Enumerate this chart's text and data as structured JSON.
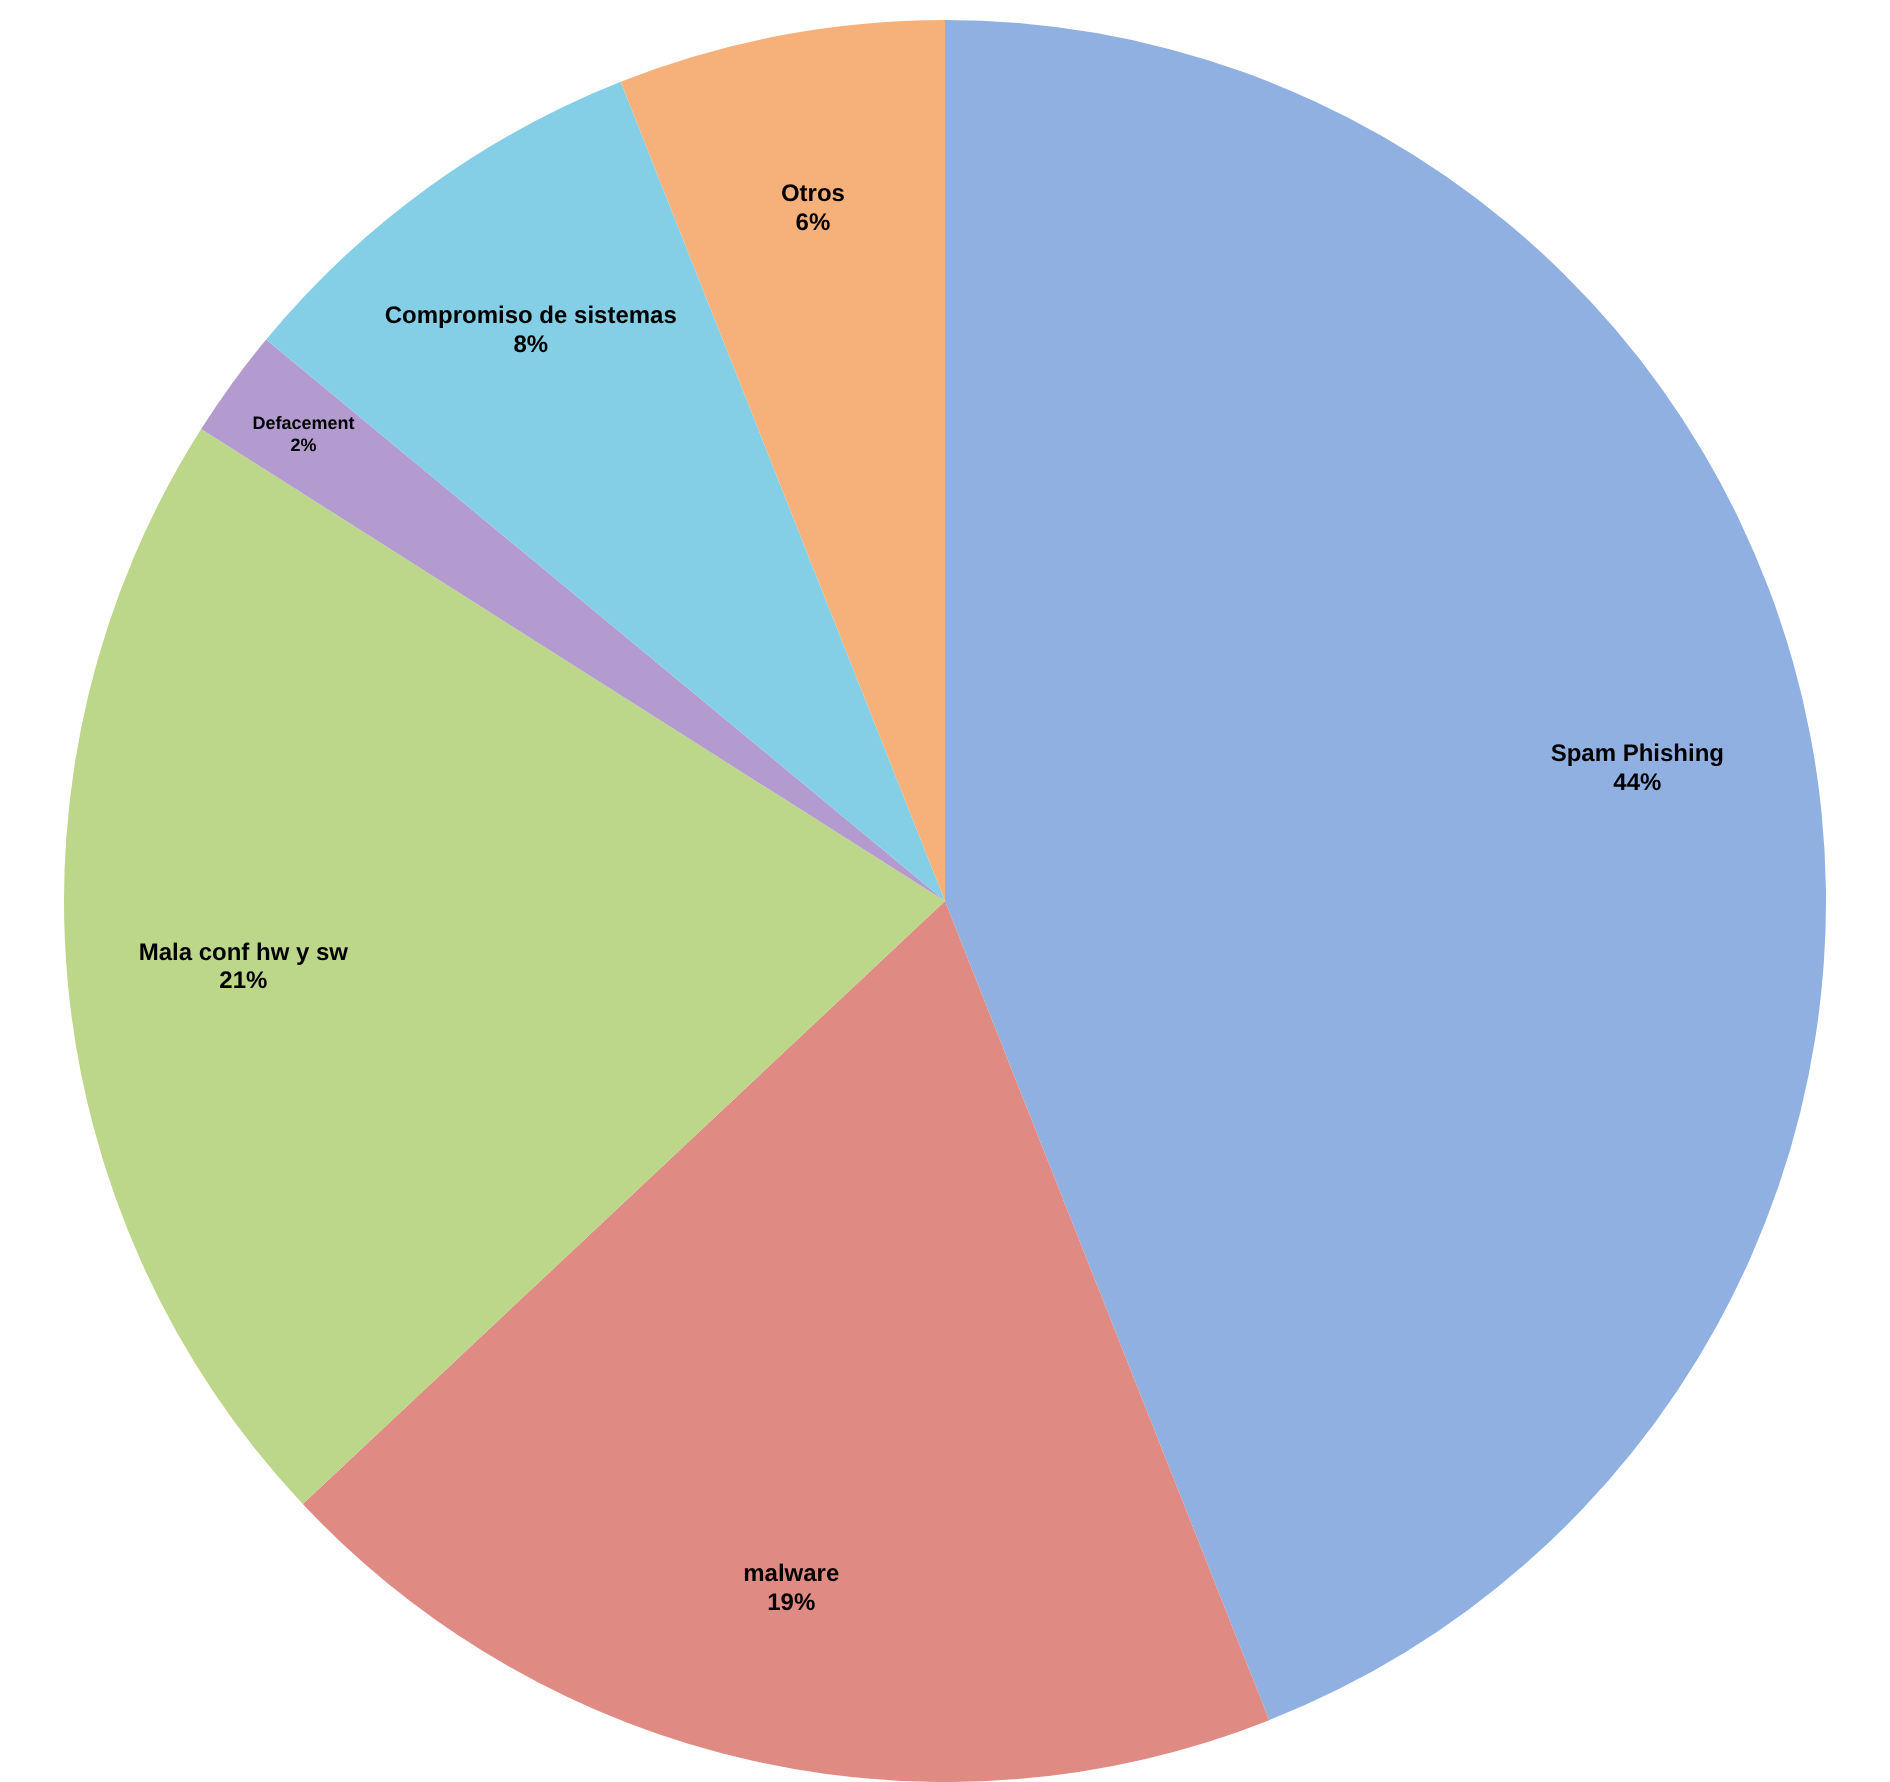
{
  "chart_data": {
    "type": "pie",
    "categories": [
      "Spam Phishing",
      "malware",
      "Mala conf hw y sw",
      "Defacement",
      "Compromiso de sistemas",
      "Otros"
    ],
    "values": [
      44,
      19,
      21,
      2,
      8,
      6
    ],
    "value_labels": [
      "44%",
      "19%",
      "21%",
      "2%",
      "8%",
      "6%"
    ],
    "colors": [
      "#8fb0e0",
      "#e08a84",
      "#bcd68a",
      "#b39bd0",
      "#84cfe6",
      "#f6b07a"
    ],
    "legend": false
  }
}
